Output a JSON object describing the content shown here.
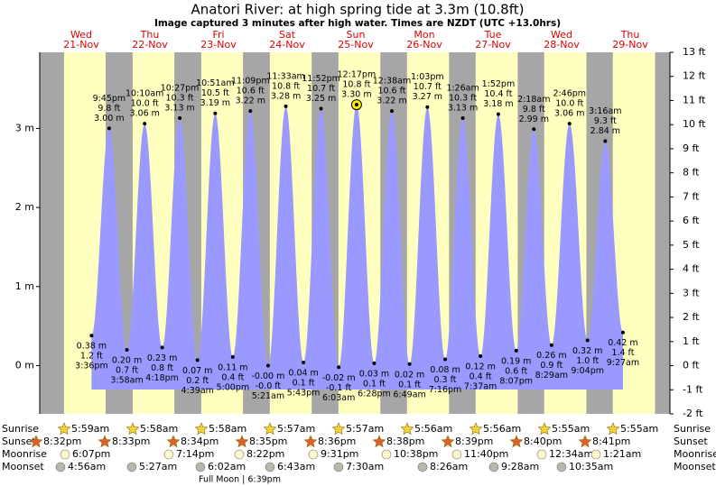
{
  "chart_data": {
    "type": "tide",
    "title": "Anatori River: at high  spring tide at 3.3m (10.8ft)",
    "subtitle": "Image captured 3 minutes after high water. Times are NZDT (UTC +13.0hrs)",
    "days": [
      "Wed",
      "Thu",
      "Fri",
      "Sat",
      "Sun",
      "Mon",
      "Tue",
      "Wed",
      "Thu"
    ],
    "dates": [
      "21-Nov",
      "22-Nov",
      "23-Nov",
      "24-Nov",
      "25-Nov",
      "26-Nov",
      "27-Nov",
      "28-Nov",
      "29-Nov"
    ],
    "extremes": {
      "times": [
        "3:36pm",
        "9:45pm",
        "3:58am",
        "10:10am",
        "4:18pm",
        "10:27pm",
        "4:39am",
        "10:51am",
        "5:00pm",
        "11:09pm",
        "5:21am",
        "11:33am",
        "5:43pm",
        "11:52pm",
        "6:03am",
        "12:17pm",
        "6:28pm",
        "12:38am",
        "6:49am",
        "1:03pm",
        "7:16pm",
        "1:26am",
        "7:37am",
        "1:52pm",
        "8:07pm",
        "2:18am",
        "8:29am",
        "2:46pm",
        "9:04pm",
        "3:16am",
        "9:27am"
      ],
      "values": [
        0.38,
        3.0,
        0.2,
        3.06,
        0.23,
        3.13,
        0.07,
        3.19,
        0.11,
        3.22,
        0.0,
        3.28,
        0.04,
        3.25,
        -0.02,
        3.3,
        0.03,
        3.22,
        0.02,
        3.27,
        0.08,
        3.13,
        0.12,
        3.18,
        0.19,
        2.99,
        0.26,
        3.06,
        0.32,
        2.84,
        0.42
      ],
      "value_labels": [
        "0.38 m",
        "3.00 m",
        "0.20 m",
        "3.06 m",
        "0.23 m",
        "3.13 m",
        "0.07 m",
        "3.19 m",
        "0.11 m",
        "3.22 m",
        "-0.00 m",
        "3.28 m",
        "0.04 m",
        "3.25 m",
        "-0.02 m",
        "3.30 m",
        "0.03 m",
        "3.22 m",
        "0.02 m",
        "3.27 m",
        "0.08 m",
        "3.13 m",
        "0.12 m",
        "3.18 m",
        "0.19 m",
        "2.99 m",
        "0.26 m",
        "3.06 m",
        "0.32 m",
        "2.84 m",
        "0.42 m"
      ],
      "ft_labels": [
        "1.2 ft",
        "9.8 ft",
        "0.7 ft",
        "10.0 ft",
        "0.8 ft",
        "10.3 ft",
        "0.2 ft",
        "10.5 ft",
        "0.4 ft",
        "10.6 ft",
        "-0.0 ft",
        "10.8 ft",
        "0.1 ft",
        "10.7 ft",
        "-0.1 ft",
        "10.8 ft",
        "0.1 ft",
        "10.6 ft",
        "0.1 ft",
        "10.7 ft",
        "0.3 ft",
        "10.3 ft",
        "0.4 ft",
        "10.4 ft",
        "0.6 ft",
        "9.8 ft",
        "0.9 ft",
        "10.0 ft",
        "1.0 ft",
        "9.3 ft",
        "1.4 ft"
      ],
      "color": "#9999ff"
    },
    "current": 15,
    "ylim": [
      -0.6096,
      3.9624
    ],
    "yticks": [
      {
        "value": 0,
        "label": "0 m"
      },
      {
        "value": 1,
        "label": "1 m"
      },
      {
        "value": 2,
        "label": "2 m"
      },
      {
        "value": 3,
        "label": "3 m"
      }
    ],
    "y2lim": [
      -2,
      13
    ],
    "y2ticks": [
      {
        "value": -2,
        "label": "-2 ft"
      },
      {
        "value": -1,
        "label": "-1 ft"
      },
      {
        "value": 0,
        "label": "0 ft"
      },
      {
        "value": 1,
        "label": "1 ft"
      },
      {
        "value": 2,
        "label": "2 ft"
      },
      {
        "value": 3,
        "label": "3 ft"
      },
      {
        "value": 4,
        "label": "4 ft"
      },
      {
        "value": 5,
        "label": "5 ft"
      },
      {
        "value": 6,
        "label": "6 ft"
      },
      {
        "value": 7,
        "label": "7 ft"
      },
      {
        "value": 8,
        "label": "8 ft"
      },
      {
        "value": 9,
        "label": "9 ft"
      },
      {
        "value": 10,
        "label": "10 ft"
      },
      {
        "value": 11,
        "label": "11 ft"
      },
      {
        "value": 12,
        "label": "12 ft"
      },
      {
        "value": 13,
        "label": "13 ft"
      }
    ],
    "day_color": "#ffffc0",
    "night_color": "#a6a6a6",
    "rows": {
      "sunrise": {
        "label": "Sunrise",
        "times": [
          "5:59am",
          "5:58am",
          "5:58am",
          "5:57am",
          "5:57am",
          "5:56am",
          "5:56am",
          "5:55am",
          "5:55am"
        ]
      },
      "sunset": {
        "label": "Sunset",
        "times": [
          "8:32pm",
          "8:33pm",
          "8:34pm",
          "8:35pm",
          "8:36pm",
          "8:38pm",
          "8:39pm",
          "8:40pm",
          "8:41pm"
        ]
      },
      "moonrise": {
        "label": "Moonrise",
        "times": [
          "6:07pm",
          "7:14pm",
          "8:22pm",
          "9:31pm",
          "10:38pm",
          "11:40pm",
          "12:34am",
          "1:21am"
        ]
      },
      "moonset": {
        "label": "Moonset",
        "times": [
          "4:56am",
          "5:27am",
          "6:02am",
          "6:43am",
          "7:30am",
          "8:26am",
          "9:28am",
          "10:35am"
        ]
      }
    },
    "moon_phase": "Full Moon | 6:39pm"
  }
}
